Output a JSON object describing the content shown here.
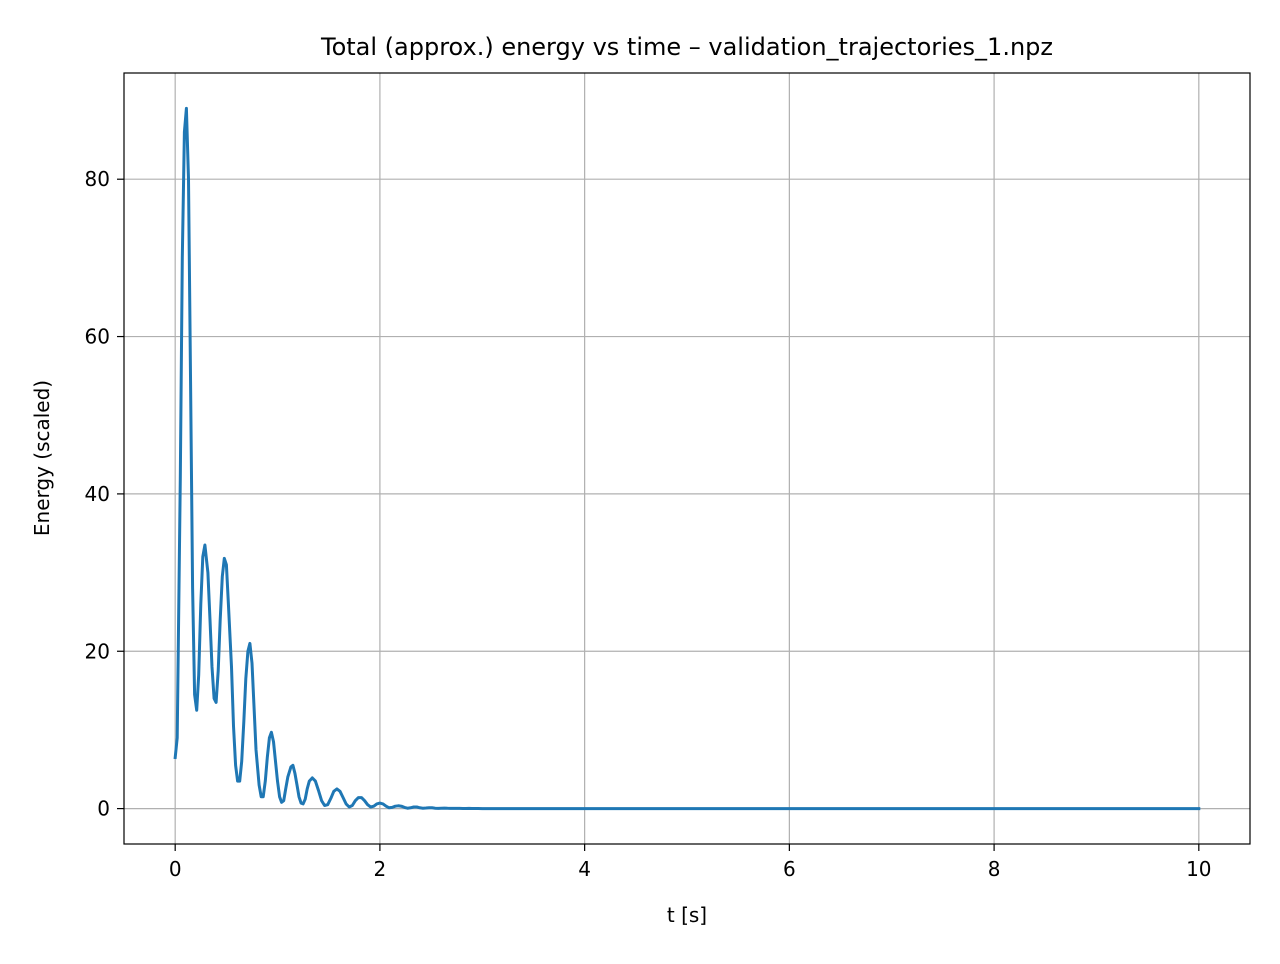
{
  "chart_data": {
    "type": "line",
    "title": "Total (approx.) energy vs time – validation_trajectories_1.npz",
    "xlabel": "t [s]",
    "ylabel": "Energy (scaled)",
    "xlim": [
      -0.5,
      10.5
    ],
    "ylim": [
      -4.5,
      93.5
    ],
    "x_ticks": [
      0,
      2,
      4,
      6,
      8,
      10
    ],
    "y_ticks": [
      0,
      20,
      40,
      60,
      80
    ],
    "x_tick_labels": [
      "0",
      "2",
      "4",
      "6",
      "8",
      "10"
    ],
    "y_tick_labels": [
      "0",
      "20",
      "40",
      "60",
      "80"
    ],
    "grid": true,
    "legend": false,
    "series": [
      {
        "color": "#1f77b4",
        "x": [
          0.0,
          0.02,
          0.05,
          0.07,
          0.09,
          0.11,
          0.13,
          0.15,
          0.17,
          0.19,
          0.21,
          0.23,
          0.25,
          0.27,
          0.29,
          0.32,
          0.34,
          0.36,
          0.38,
          0.4,
          0.42,
          0.44,
          0.46,
          0.48,
          0.5,
          0.52,
          0.55,
          0.57,
          0.59,
          0.61,
          0.63,
          0.65,
          0.67,
          0.69,
          0.71,
          0.73,
          0.75,
          0.77,
          0.79,
          0.82,
          0.84,
          0.86,
          0.88,
          0.9,
          0.92,
          0.94,
          0.96,
          0.98,
          1.0,
          1.02,
          1.04,
          1.06,
          1.08,
          1.1,
          1.13,
          1.15,
          1.17,
          1.19,
          1.21,
          1.23,
          1.25,
          1.27,
          1.29,
          1.31,
          1.34,
          1.37,
          1.4,
          1.43,
          1.46,
          1.49,
          1.52,
          1.55,
          1.58,
          1.61,
          1.64,
          1.67,
          1.7,
          1.73,
          1.76,
          1.79,
          1.82,
          1.85,
          1.88,
          1.91,
          1.94,
          1.97,
          2.0,
          2.03,
          2.06,
          2.09,
          2.12,
          2.15,
          2.18,
          2.21,
          2.24,
          2.27,
          2.3,
          2.33,
          2.36,
          2.39,
          2.42,
          2.45,
          2.48,
          2.51,
          2.54,
          2.57,
          2.6,
          2.63,
          2.66,
          2.69,
          2.72,
          2.75,
          2.78,
          2.81,
          2.84,
          2.87,
          2.9,
          2.93,
          2.96,
          3.0,
          3.05,
          3.1,
          3.15,
          3.2,
          3.25,
          3.3,
          3.35,
          3.4,
          3.45,
          3.5,
          3.6,
          3.8,
          4.0,
          5.0,
          6.0,
          7.0,
          8.0,
          9.0,
          10.0
        ],
        "y": [
          6.5,
          9.0,
          42.0,
          70.0,
          86.0,
          89.0,
          80.0,
          55.0,
          28.0,
          14.5,
          12.5,
          17.0,
          26.0,
          32.0,
          33.5,
          30.0,
          24.0,
          18.0,
          14.0,
          13.5,
          17.5,
          24.0,
          29.5,
          31.8,
          31.0,
          26.0,
          18.0,
          10.5,
          5.5,
          3.5,
          3.5,
          6.0,
          11.0,
          16.5,
          20.0,
          21.0,
          18.5,
          13.0,
          7.5,
          3.0,
          1.5,
          1.5,
          3.5,
          6.5,
          9.0,
          9.7,
          8.5,
          6.0,
          3.5,
          1.5,
          0.8,
          1.0,
          2.5,
          4.0,
          5.3,
          5.5,
          4.5,
          3.0,
          1.5,
          0.7,
          0.6,
          1.2,
          2.5,
          3.5,
          3.9,
          3.5,
          2.3,
          1.0,
          0.4,
          0.5,
          1.3,
          2.2,
          2.5,
          2.2,
          1.4,
          0.6,
          0.2,
          0.4,
          1.0,
          1.4,
          1.4,
          1.0,
          0.5,
          0.2,
          0.3,
          0.6,
          0.7,
          0.6,
          0.3,
          0.1,
          0.15,
          0.3,
          0.35,
          0.3,
          0.15,
          0.05,
          0.1,
          0.2,
          0.2,
          0.1,
          0.05,
          0.08,
          0.12,
          0.1,
          0.05,
          0.03,
          0.05,
          0.06,
          0.04,
          0.02,
          0.02,
          0.03,
          0.02,
          0.01,
          0.01,
          0.02,
          0.01,
          0.01,
          0.01,
          0.0,
          0.0,
          0.0,
          0.0,
          0.0,
          0.0,
          0.0,
          0.0,
          0.0,
          0.0,
          0.0,
          0.0,
          0.0,
          0.0,
          0.0,
          0.0,
          0.0,
          0.0,
          0.0,
          0.0
        ]
      }
    ]
  }
}
